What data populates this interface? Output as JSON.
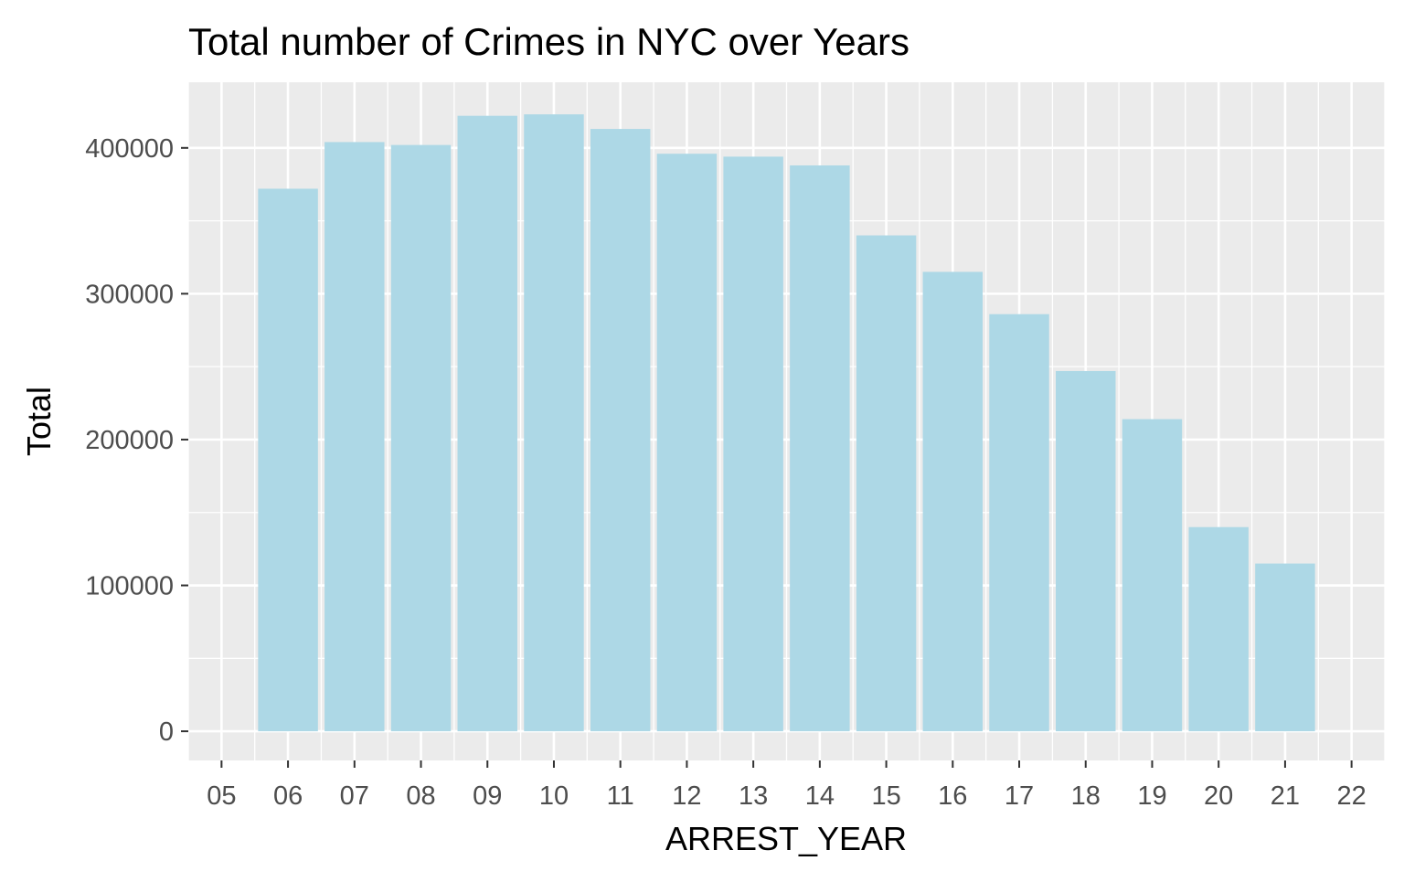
{
  "chart_data": {
    "type": "bar",
    "title": "Total number of Crimes in NYC over Years",
    "xlabel": "ARREST_YEAR",
    "ylabel": "Total",
    "categories": [
      "05",
      "06",
      "07",
      "08",
      "09",
      "10",
      "11",
      "12",
      "13",
      "14",
      "15",
      "16",
      "17",
      "18",
      "19",
      "20",
      "21",
      "22"
    ],
    "values": [
      null,
      372000,
      404000,
      402000,
      422000,
      423000,
      413000,
      396000,
      394000,
      388000,
      340000,
      315000,
      286000,
      247000,
      214000,
      140000,
      115000,
      null
    ],
    "yticks": [
      0,
      100000,
      200000,
      300000,
      400000
    ],
    "ytick_labels": [
      "0",
      "100000",
      "200000",
      "300000",
      "400000"
    ],
    "ylim": [
      -20000,
      445000
    ],
    "grid": true,
    "legend": "none",
    "bar_color": "#add8e6",
    "panel_background": "#ebebeb",
    "gridline_color": "#ffffff"
  }
}
